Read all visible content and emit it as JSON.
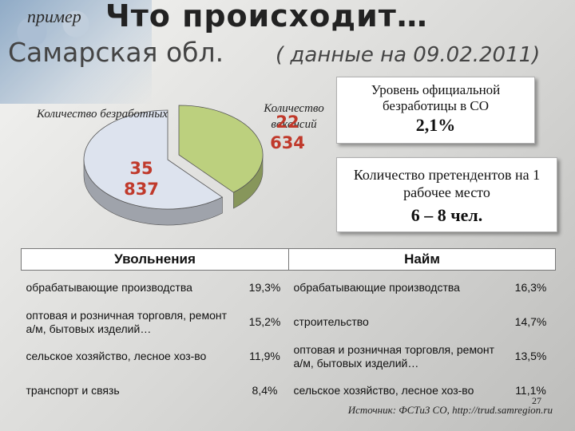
{
  "header": {
    "example": "пример",
    "title": "Что происходит…",
    "subtitle": "Самарская обл.",
    "subtitle_note": "( данные на 09.02.2011)"
  },
  "chart_data": {
    "type": "pie",
    "slices": [
      {
        "label": "Количество безработных",
        "value_text": "35 837",
        "value": 35837,
        "color": "#dde3ee"
      },
      {
        "label": "Количество вакансий",
        "value_text": "22 634",
        "value": 22634,
        "color": "#bcd07e"
      }
    ]
  },
  "info": {
    "unemployment_label": "Уровень официальной безработицы в СО",
    "unemployment_value": "2,1%",
    "applicants_label": "Количество претендентов на 1 рабочее место",
    "applicants_value": "6 – 8 чел."
  },
  "table": {
    "dismissals_header": "Увольнения",
    "hiring_header": "Найм",
    "rows": [
      {
        "d_name": "обрабатывающие производства",
        "d_val": "19,3%",
        "h_name": "обрабатывающие производства",
        "h_val": "16,3%"
      },
      {
        "d_name": "оптовая и розничная торговля, ремонт а/м, бытовых изделий…",
        "d_val": "15,2%",
        "h_name": "строительство",
        "h_val": "14,7%"
      },
      {
        "d_name": "сельское хозяйство, лесное хоз-во",
        "d_val": "11,9%",
        "h_name": "оптовая и розничная торговля, ремонт а/м, бытовых изделий…",
        "h_val": "13,5%"
      },
      {
        "d_name": "транспорт и связь",
        "d_val": "8,4%",
        "h_name": "сельское хозяйство, лесное хоз-во",
        "h_val": "11,1%"
      }
    ]
  },
  "footer": {
    "source": "Источник: ФСТиЗ СО, http://trud.samregion.ru",
    "page_number": "27"
  }
}
